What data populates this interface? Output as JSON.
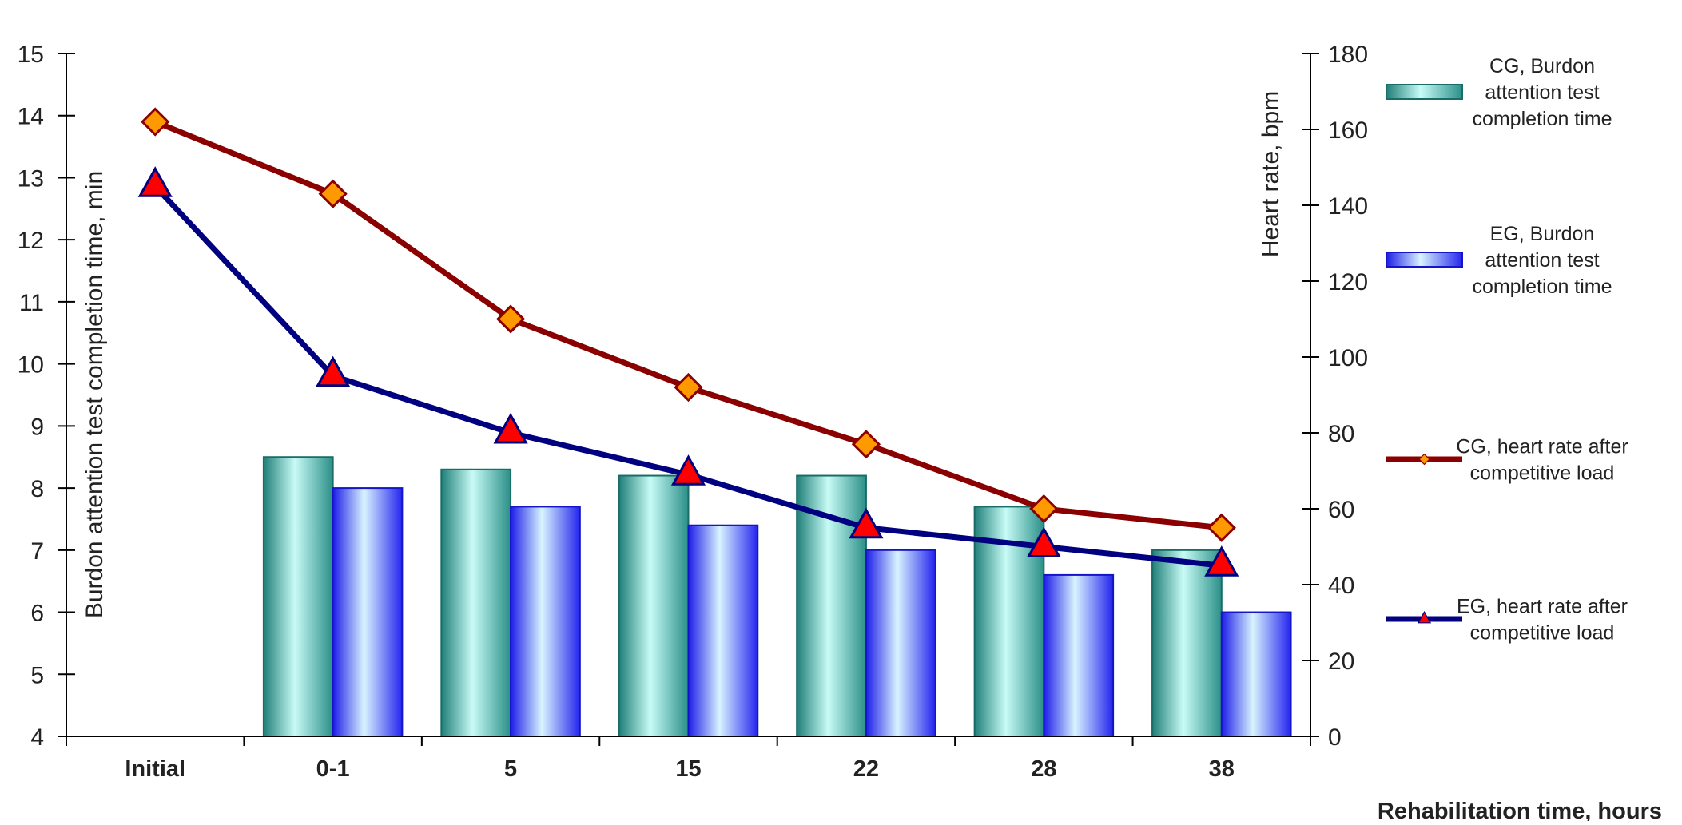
{
  "chart_data": {
    "type": "bar+line",
    "categories": [
      "Initial",
      "0-1",
      "5",
      "15",
      "22",
      "28",
      "38"
    ],
    "xlabel": "Rehabilitation time, hours",
    "ylabel_left": "Burdon attention test completion time, min",
    "ylabel_right": "Heart rate, bpm",
    "ylim_left": [
      4,
      15
    ],
    "yticks_left": [
      "4",
      "5",
      "6",
      "7",
      "8",
      "9",
      "10",
      "11",
      "12",
      "13",
      "14",
      "15"
    ],
    "ylim_right": [
      0,
      180
    ],
    "yticks_right": [
      "0",
      "20",
      "40",
      "60",
      "80",
      "100",
      "120",
      "140",
      "160",
      "180"
    ],
    "grid": false,
    "legend_position": "right",
    "series": [
      {
        "name_lines": [
          "CG, Burdon",
          "attention test",
          "completion time"
        ],
        "type": "bar",
        "axis": "left",
        "color": "#2e9a92",
        "values": [
          null,
          8.5,
          8.3,
          8.2,
          8.2,
          7.7,
          7.0
        ]
      },
      {
        "name_lines": [
          "EG, Burdon",
          "attention test",
          "completion time"
        ],
        "type": "bar",
        "axis": "left",
        "color": "#2222ee",
        "values": [
          null,
          8.0,
          7.7,
          7.4,
          7.0,
          6.6,
          6.0
        ]
      },
      {
        "name_lines": [
          "CG, heart rate after",
          "competitive load"
        ],
        "type": "line",
        "axis": "right",
        "color": "#8b0000",
        "marker": "diamond",
        "marker_color": "#ff9900",
        "values": [
          162,
          143,
          110,
          92,
          77,
          60,
          55
        ]
      },
      {
        "name_lines": [
          "EG, heart rate after",
          "competitive load"
        ],
        "type": "line",
        "axis": "right",
        "color": "#000080",
        "marker": "triangle",
        "marker_color": "#ff0000",
        "values": [
          145,
          95,
          80,
          69,
          55,
          50,
          45
        ]
      }
    ]
  }
}
